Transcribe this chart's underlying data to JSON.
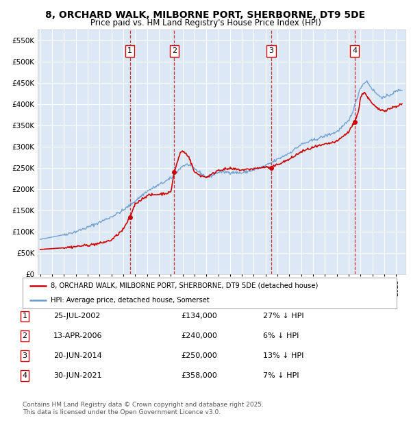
{
  "title": "8, ORCHARD WALK, MILBORNE PORT, SHERBORNE, DT9 5DE",
  "subtitle": "Price paid vs. HM Land Registry's House Price Index (HPI)",
  "legend_label_red": "8, ORCHARD WALK, MILBORNE PORT, SHERBORNE, DT9 5DE (detached house)",
  "legend_label_blue": "HPI: Average price, detached house, Somerset",
  "footer1": "Contains HM Land Registry data © Crown copyright and database right 2025.",
  "footer2": "This data is licensed under the Open Government Licence v3.0.",
  "sales": [
    {
      "num": 1,
      "date": "25-JUL-2002",
      "price": 134000,
      "pct": "27%",
      "x_year": 2002.56
    },
    {
      "num": 2,
      "date": "13-APR-2006",
      "price": 240000,
      "pct": "6%",
      "x_year": 2006.3
    },
    {
      "num": 3,
      "date": "20-JUN-2014",
      "price": 250000,
      "pct": "13%",
      "x_year": 2014.47
    },
    {
      "num": 4,
      "date": "30-JUN-2021",
      "price": 358000,
      "pct": "7%",
      "x_year": 2021.49
    }
  ],
  "ylim": [
    0,
    575000
  ],
  "yticks": [
    0,
    50000,
    100000,
    150000,
    200000,
    250000,
    300000,
    350000,
    400000,
    450000,
    500000,
    550000
  ],
  "ytick_labels": [
    "£0",
    "£50K",
    "£100K",
    "£150K",
    "£200K",
    "£250K",
    "£300K",
    "£350K",
    "£400K",
    "£450K",
    "£500K",
    "£550K"
  ],
  "xlim_start": 1994.8,
  "xlim_end": 2025.8,
  "background_color": "#dce8f5",
  "red_color": "#cc0000",
  "blue_color": "#6699cc",
  "grid_color": "#ffffff",
  "hpi_anchors": [
    [
      1995.0,
      82000
    ],
    [
      1996.0,
      87000
    ],
    [
      1997.0,
      93000
    ],
    [
      1998.0,
      100000
    ],
    [
      1999.0,
      110000
    ],
    [
      2000.0,
      122000
    ],
    [
      2001.0,
      135000
    ],
    [
      2002.0,
      150000
    ],
    [
      2003.0,
      172000
    ],
    [
      2004.0,
      195000
    ],
    [
      2005.0,
      210000
    ],
    [
      2006.0,
      225000
    ],
    [
      2007.0,
      255000
    ],
    [
      2007.5,
      258000
    ],
    [
      2008.0,
      248000
    ],
    [
      2008.5,
      238000
    ],
    [
      2009.0,
      228000
    ],
    [
      2009.5,
      232000
    ],
    [
      2010.0,
      240000
    ],
    [
      2011.0,
      240000
    ],
    [
      2012.0,
      238000
    ],
    [
      2013.0,
      245000
    ],
    [
      2014.0,
      255000
    ],
    [
      2015.0,
      270000
    ],
    [
      2016.0,
      285000
    ],
    [
      2017.0,
      305000
    ],
    [
      2018.0,
      315000
    ],
    [
      2019.0,
      325000
    ],
    [
      2020.0,
      335000
    ],
    [
      2021.0,
      360000
    ],
    [
      2021.5,
      395000
    ],
    [
      2022.0,
      440000
    ],
    [
      2022.5,
      455000
    ],
    [
      2023.0,
      435000
    ],
    [
      2023.5,
      420000
    ],
    [
      2024.0,
      415000
    ],
    [
      2025.0,
      430000
    ],
    [
      2025.5,
      435000
    ]
  ],
  "red_anchors": [
    [
      1995.0,
      58000
    ],
    [
      1996.0,
      60000
    ],
    [
      1997.0,
      62000
    ],
    [
      1998.0,
      65000
    ],
    [
      1999.0,
      68000
    ],
    [
      2000.0,
      72000
    ],
    [
      2001.0,
      80000
    ],
    [
      2002.0,
      105000
    ],
    [
      2002.56,
      134000
    ],
    [
      2003.0,
      165000
    ],
    [
      2004.0,
      185000
    ],
    [
      2005.0,
      188000
    ],
    [
      2006.0,
      192000
    ],
    [
      2006.3,
      240000
    ],
    [
      2006.8,
      285000
    ],
    [
      2007.0,
      290000
    ],
    [
      2007.5,
      278000
    ],
    [
      2008.0,
      240000
    ],
    [
      2008.5,
      232000
    ],
    [
      2009.0,
      228000
    ],
    [
      2009.5,
      235000
    ],
    [
      2010.0,
      245000
    ],
    [
      2011.0,
      248000
    ],
    [
      2012.0,
      245000
    ],
    [
      2013.0,
      248000
    ],
    [
      2014.0,
      252000
    ],
    [
      2014.47,
      250000
    ],
    [
      2015.0,
      258000
    ],
    [
      2016.0,
      270000
    ],
    [
      2017.0,
      288000
    ],
    [
      2018.0,
      298000
    ],
    [
      2019.0,
      305000
    ],
    [
      2020.0,
      312000
    ],
    [
      2021.0,
      335000
    ],
    [
      2021.49,
      358000
    ],
    [
      2021.8,
      380000
    ],
    [
      2022.0,
      415000
    ],
    [
      2022.3,
      430000
    ],
    [
      2022.5,
      420000
    ],
    [
      2023.0,
      400000
    ],
    [
      2023.5,
      388000
    ],
    [
      2024.0,
      385000
    ],
    [
      2024.5,
      390000
    ],
    [
      2025.0,
      395000
    ],
    [
      2025.5,
      400000
    ]
  ]
}
